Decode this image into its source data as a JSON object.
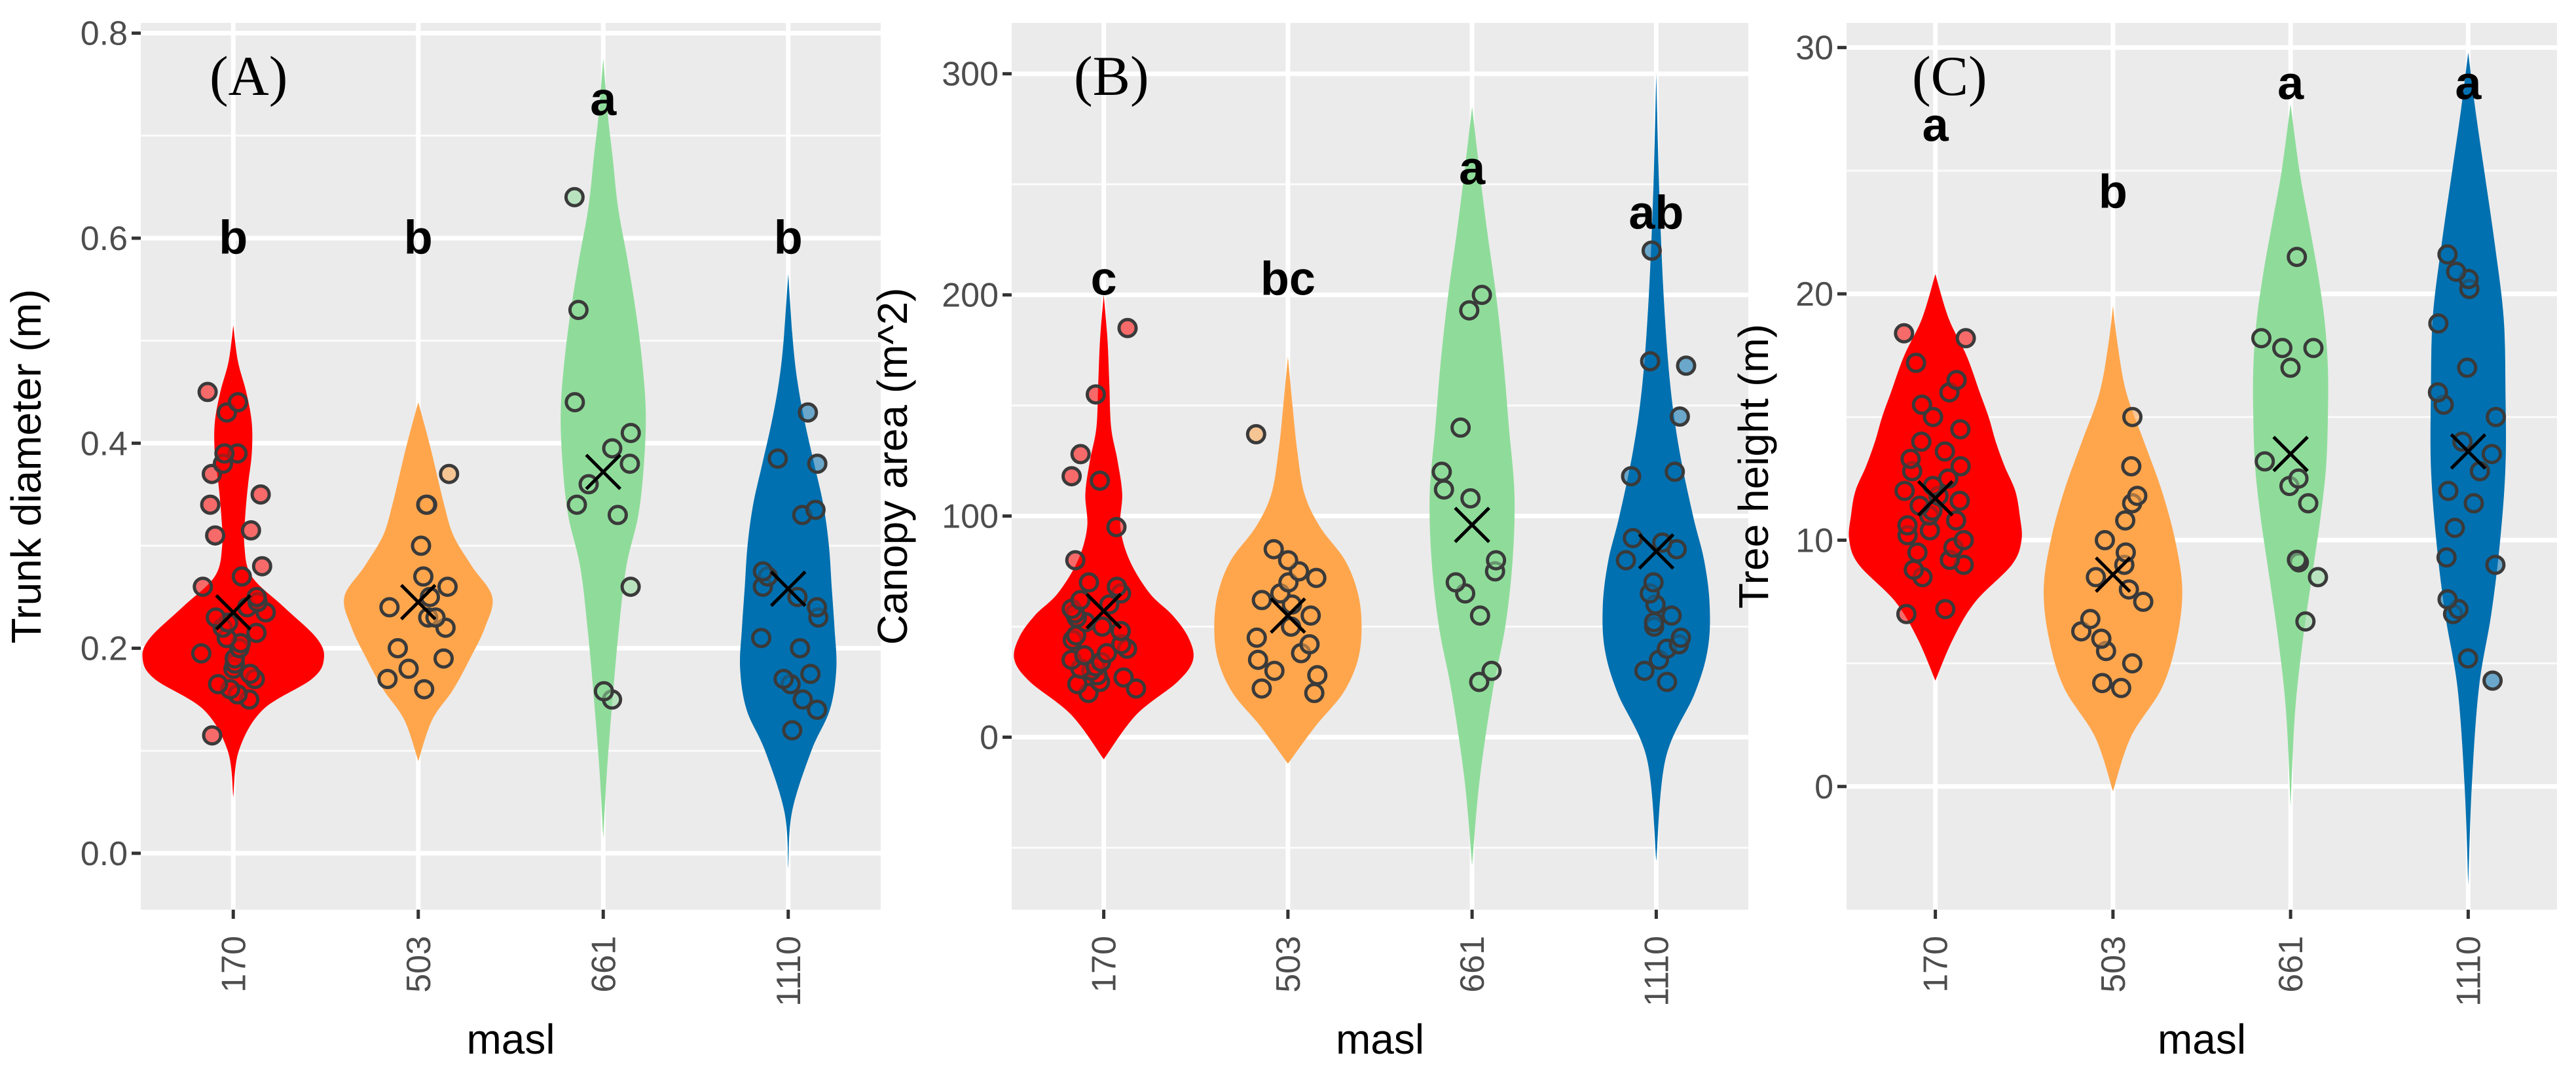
{
  "figure": {
    "x_axis_title": "masl"
  },
  "colors": {
    "170": "#ff0000",
    "503": "#ffa64d",
    "661": "#8fdc9a",
    "1110": "#0070b0"
  },
  "chart_data": [
    {
      "type": "violin",
      "panel_label": "(A)",
      "ylabel": "Trunk diameter (m)",
      "xlabel": "masl",
      "categories": [
        "170",
        "503",
        "661",
        "1110"
      ],
      "ylim": [
        -0.055,
        0.81
      ],
      "yticks": [
        0.0,
        0.2,
        0.4,
        0.6,
        0.8
      ],
      "ytick_labels": [
        "0.0",
        "0.2",
        "0.4",
        "0.6",
        "0.8"
      ],
      "groups": [
        {
          "name": "170",
          "letter": "b",
          "letter_y": 0.585,
          "mean": 0.235,
          "violin": {
            "y": [
              0.055,
              0.1,
              0.14,
              0.17,
              0.19,
              0.21,
              0.24,
              0.27,
              0.3,
              0.33,
              0.36,
              0.39,
              0.42,
              0.45,
              0.48,
              0.515
            ],
            "width": [
              0.0,
              0.06,
              0.32,
              0.85,
              0.98,
              0.9,
              0.55,
              0.2,
              0.12,
              0.13,
              0.16,
              0.2,
              0.2,
              0.14,
              0.05,
              0.0
            ]
          },
          "points": [
            0.115,
            0.15,
            0.155,
            0.16,
            0.165,
            0.17,
            0.175,
            0.18,
            0.185,
            0.19,
            0.195,
            0.2,
            0.205,
            0.21,
            0.215,
            0.22,
            0.225,
            0.23,
            0.235,
            0.24,
            0.245,
            0.25,
            0.26,
            0.27,
            0.28,
            0.31,
            0.315,
            0.34,
            0.35,
            0.37,
            0.38,
            0.39,
            0.39,
            0.43,
            0.44,
            0.45
          ]
        },
        {
          "name": "503",
          "letter": "b",
          "letter_y": 0.585,
          "mean": 0.245,
          "violin": {
            "y": [
              0.09,
              0.13,
              0.16,
              0.19,
              0.22,
              0.25,
              0.28,
              0.31,
              0.34,
              0.37,
              0.4,
              0.44
            ],
            "width": [
              0.0,
              0.15,
              0.38,
              0.56,
              0.72,
              0.8,
              0.58,
              0.38,
              0.28,
              0.2,
              0.12,
              0.0
            ]
          },
          "points": [
            0.16,
            0.17,
            0.18,
            0.19,
            0.2,
            0.22,
            0.23,
            0.23,
            0.24,
            0.25,
            0.26,
            0.27,
            0.3,
            0.34,
            0.34,
            0.37
          ]
        },
        {
          "name": "661",
          "letter": "a",
          "letter_y": 0.72,
          "mean": 0.372,
          "violin": {
            "y": [
              0.015,
              0.08,
              0.15,
              0.22,
              0.28,
              0.33,
              0.38,
              0.43,
              0.48,
              0.53,
              0.58,
              0.63,
              0.68,
              0.72,
              0.775
            ],
            "width": [
              0.0,
              0.04,
              0.1,
              0.17,
              0.25,
              0.38,
              0.44,
              0.46,
              0.42,
              0.35,
              0.26,
              0.16,
              0.1,
              0.05,
              0.0
            ]
          },
          "points": [
            0.15,
            0.158,
            0.26,
            0.33,
            0.34,
            0.36,
            0.38,
            0.395,
            0.41,
            0.44,
            0.53,
            0.64
          ]
        },
        {
          "name": "1110",
          "letter": "b",
          "letter_y": 0.585,
          "mean": 0.258,
          "violin": {
            "y": [
              -0.015,
              0.04,
              0.1,
              0.14,
              0.18,
              0.22,
              0.26,
              0.3,
              0.34,
              0.38,
              0.42,
              0.46,
              0.5,
              0.565
            ],
            "width": [
              0.0,
              0.04,
              0.25,
              0.45,
              0.52,
              0.5,
              0.47,
              0.44,
              0.38,
              0.28,
              0.18,
              0.1,
              0.05,
              0.0
            ]
          },
          "points": [
            0.12,
            0.14,
            0.15,
            0.165,
            0.17,
            0.175,
            0.2,
            0.21,
            0.23,
            0.24,
            0.25,
            0.26,
            0.27,
            0.275,
            0.33,
            0.335,
            0.38,
            0.385,
            0.43
          ]
        }
      ]
    },
    {
      "type": "violin",
      "panel_label": "(B)",
      "ylabel": "Canopy area (m^2)",
      "xlabel": "masl",
      "categories": [
        "170",
        "503",
        "661",
        "1110"
      ],
      "ylim": [
        -78,
        323
      ],
      "yticks": [
        0,
        100,
        200,
        300
      ],
      "ytick_labels": [
        "0",
        "100",
        "200",
        "300"
      ],
      "groups": [
        {
          "name": "170",
          "letter": "c",
          "letter_y": 200,
          "mean": 57,
          "violin": {
            "y": [
              -10,
              10,
              25,
              35,
              45,
              55,
              65,
              80,
              95,
              110,
              125,
              140,
              160,
              180,
              200
            ],
            "width": [
              0.0,
              0.35,
              0.8,
              0.97,
              0.92,
              0.75,
              0.5,
              0.28,
              0.18,
              0.2,
              0.15,
              0.08,
              0.06,
              0.04,
              0.0
            ]
          },
          "points": [
            20,
            22,
            24,
            25,
            27,
            28,
            30,
            31,
            32,
            34,
            35,
            37,
            38,
            40,
            42,
            44,
            46,
            48,
            50,
            52,
            54,
            56,
            58,
            60,
            62,
            65,
            68,
            70,
            80,
            95,
            116,
            118,
            128,
            155,
            185
          ]
        },
        {
          "name": "503",
          "letter": "bc",
          "letter_y": 200,
          "mean": 55,
          "violin": {
            "y": [
              -12,
              5,
              20,
              35,
              50,
              65,
              80,
              95,
              110,
              130,
              150,
              172
            ],
            "width": [
              0.0,
              0.3,
              0.6,
              0.76,
              0.8,
              0.76,
              0.62,
              0.35,
              0.18,
              0.1,
              0.05,
              0.0
            ]
          },
          "points": [
            20,
            22,
            28,
            30,
            35,
            38,
            42,
            45,
            50,
            55,
            60,
            62,
            65,
            70,
            72,
            75,
            80,
            85,
            137
          ]
        },
        {
          "name": "661",
          "letter": "a",
          "letter_y": 250,
          "mean": 96,
          "violin": {
            "y": [
              -58,
              -20,
              20,
              50,
              80,
              110,
              140,
              170,
              200,
              230,
              260,
              285
            ],
            "width": [
              0.0,
              0.08,
              0.22,
              0.36,
              0.44,
              0.46,
              0.4,
              0.34,
              0.26,
              0.16,
              0.07,
              0.0
            ]
          },
          "points": [
            25,
            30,
            55,
            65,
            70,
            75,
            80,
            108,
            112,
            120,
            140,
            193,
            200
          ]
        },
        {
          "name": "1110",
          "letter": "ab",
          "letter_y": 230,
          "mean": 84,
          "violin": {
            "y": [
              -56,
              -10,
              20,
              40,
              60,
              80,
              100,
              130,
              160,
              200,
              250,
              300
            ],
            "width": [
              0.0,
              0.1,
              0.42,
              0.56,
              0.58,
              0.52,
              0.4,
              0.25,
              0.15,
              0.08,
              0.03,
              0.0
            ]
          },
          "points": [
            25,
            30,
            35,
            40,
            42,
            45,
            50,
            52,
            55,
            60,
            65,
            70,
            80,
            85,
            88,
            90,
            118,
            120,
            145,
            168,
            170,
            220
          ]
        }
      ]
    },
    {
      "type": "violin",
      "panel_label": "(C)",
      "ylabel": "Tree height (m)",
      "xlabel": "masl",
      "categories": [
        "170",
        "503",
        "661",
        "1110"
      ],
      "ylim": [
        -5,
        31
      ],
      "yticks": [
        0,
        10,
        20,
        30
      ],
      "ytick_labels": [
        "0",
        "10",
        "20",
        "30"
      ],
      "groups": [
        {
          "name": "170",
          "letter": "a",
          "letter_y": 26.2,
          "mean": 11.7,
          "violin": {
            "y": [
              4.3,
              6,
              7.5,
              9,
              10,
              11,
              12,
              13,
              14,
              15,
              16,
              17.5,
              19,
              20.8
            ],
            "width": [
              0.0,
              0.2,
              0.45,
              0.86,
              0.97,
              0.95,
              0.9,
              0.78,
              0.68,
              0.6,
              0.5,
              0.35,
              0.15,
              0.0
            ]
          },
          "points": [
            7,
            7.2,
            8.5,
            8.8,
            9,
            9.2,
            9.5,
            9.7,
            10,
            10.2,
            10.4,
            10.6,
            10.8,
            11,
            11.2,
            11.4,
            11.6,
            11.8,
            12,
            12.2,
            12.5,
            12.8,
            13,
            13.3,
            13.6,
            14,
            14.5,
            15,
            15.5,
            16,
            16.5,
            17.2,
            18.2,
            18.4
          ]
        },
        {
          "name": "503",
          "letter": "b",
          "letter_y": 23.5,
          "mean": 8.6,
          "violin": {
            "y": [
              -0.2,
              2,
              4,
              6,
              8,
              10,
              12,
              14,
              16,
              18,
              19.5
            ],
            "width": [
              0.0,
              0.2,
              0.55,
              0.72,
              0.78,
              0.7,
              0.55,
              0.35,
              0.15,
              0.05,
              0.0
            ]
          },
          "points": [
            4,
            4.2,
            5,
            5.5,
            6,
            6.3,
            6.8,
            7.5,
            8,
            8.5,
            9,
            9.5,
            10,
            10.8,
            11.5,
            11.8,
            13,
            15
          ]
        },
        {
          "name": "661",
          "letter": "a",
          "letter_y": 27.9,
          "mean": 13.5,
          "violin": {
            "y": [
              -0.8,
              3,
              6,
              9,
              11,
              13,
              15,
              17,
              19,
              21,
              23,
              25,
              27.7
            ],
            "width": [
              0.0,
              0.05,
              0.14,
              0.26,
              0.34,
              0.4,
              0.42,
              0.42,
              0.38,
              0.3,
              0.2,
              0.1,
              0.0
            ]
          },
          "points": [
            6.7,
            8.5,
            9.1,
            9.2,
            11.5,
            12.2,
            12.5,
            13.2,
            17,
            17.8,
            17.8,
            18.2,
            21.5
          ]
        },
        {
          "name": "1110",
          "letter": "a",
          "letter_y": 27.9,
          "mean": 13.6,
          "violin": {
            "y": [
              -4,
              0,
              4,
              7,
              10,
              13,
              16,
              19,
              22,
              25,
              27.5,
              29.8
            ],
            "width": [
              0.0,
              0.04,
              0.12,
              0.26,
              0.36,
              0.42,
              0.42,
              0.4,
              0.3,
              0.18,
              0.08,
              0.0
            ]
          },
          "points": [
            4.3,
            5.2,
            7,
            7.2,
            7.6,
            9,
            9.3,
            10.5,
            11.5,
            12,
            12.8,
            13.5,
            14,
            15,
            15.5,
            16,
            17,
            18.8,
            20.2,
            20.6,
            20.9,
            21.6
          ]
        }
      ]
    }
  ]
}
